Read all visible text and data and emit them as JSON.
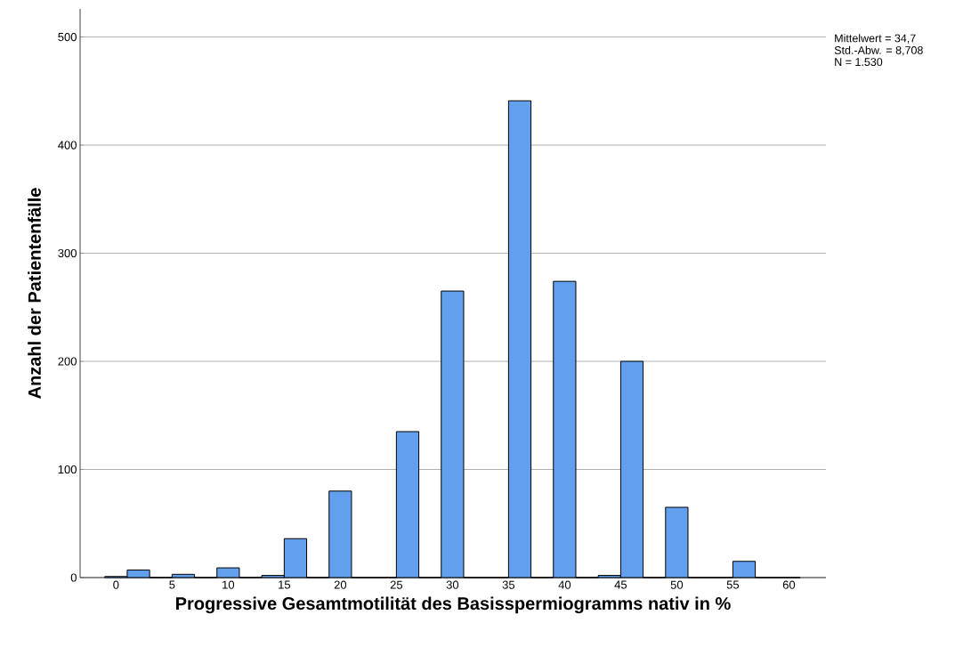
{
  "chart_data": {
    "type": "histogram",
    "xlabel": "Progressive Gesamtmotilität des Basisspermiogramms nativ in %",
    "ylabel": "Anzahl der Patientenfälle",
    "bins": [
      -1,
      1,
      3,
      5,
      7,
      9,
      11,
      13,
      15,
      17,
      19,
      21,
      23,
      25,
      27,
      29,
      31,
      33,
      35,
      37,
      39,
      41,
      43,
      45,
      47,
      49,
      51,
      53,
      55,
      57,
      59,
      61
    ],
    "values": [
      1,
      7,
      0,
      3,
      0,
      9,
      0,
      2,
      36,
      0,
      80,
      0,
      0,
      135,
      0,
      265,
      0,
      0,
      441,
      0,
      274,
      0,
      2,
      200,
      0,
      65,
      0,
      0,
      15,
      0,
      0
    ],
    "color": "#62a0ee",
    "xlim": [
      -3.2,
      63.3
    ],
    "ylim": [
      0,
      526
    ],
    "xticks": [
      0,
      5,
      10,
      15,
      20,
      25,
      30,
      35,
      40,
      45,
      50,
      55,
      60
    ],
    "yticks": [
      0,
      100,
      200,
      300,
      400,
      500
    ],
    "grid": "y",
    "annotations": [
      "Mittelwert = 34,7",
      "Std.-Abw. = 8,708",
      "N = 1.530"
    ]
  }
}
